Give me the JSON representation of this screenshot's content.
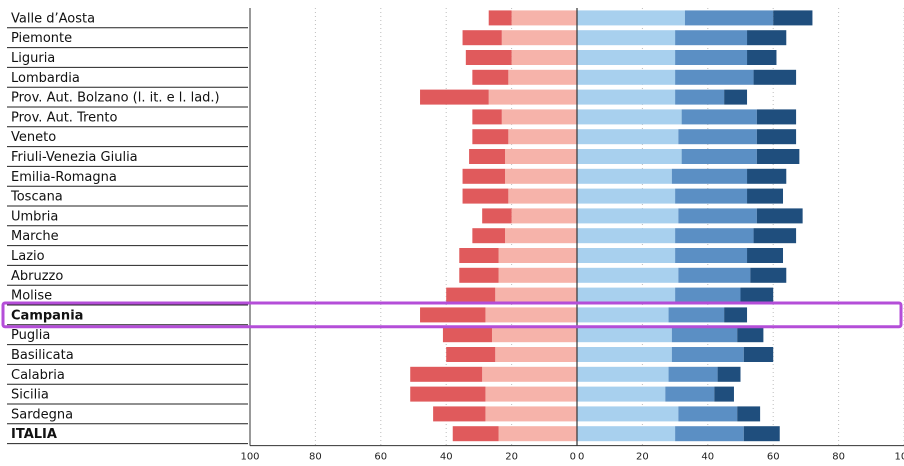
{
  "chart_data": {
    "type": "bar",
    "orientation": "horizontal",
    "stacked": true,
    "diverging": true,
    "categories": [
      "Valle d’Aosta",
      "Piemonte",
      "Liguria",
      "Lombardia",
      "Prov. Aut. Bolzano (l. it. e l. lad.)",
      "Prov. Aut. Trento",
      "Veneto",
      "Friuli-Venezia Giulia",
      "Emilia-Romagna",
      "Toscana",
      "Umbria",
      "Marche",
      "Lazio",
      "Abruzzo",
      "Molise",
      "Campania",
      "Puglia",
      "Basilicata",
      "Calabria",
      "Sicilia",
      "Sardegna",
      "ITALIA"
    ],
    "highlighted_category": "Campania",
    "left_series": [
      {
        "color": "#f6b3aa",
        "values": [
          20,
          23,
          20,
          21,
          27,
          23,
          21,
          22,
          22,
          21,
          20,
          22,
          24,
          24,
          25,
          28,
          26,
          25,
          29,
          28,
          28,
          24
        ]
      },
      {
        "color": "#e05a5c",
        "values": [
          7,
          12,
          14,
          11,
          21,
          9,
          11,
          11,
          13,
          14,
          9,
          10,
          12,
          12,
          15,
          20,
          15,
          15,
          22,
          23,
          16,
          14
        ]
      }
    ],
    "right_series": [
      {
        "color": "#a8d0ee",
        "values": [
          33,
          30,
          30,
          30,
          30,
          32,
          31,
          32,
          29,
          30,
          31,
          30,
          30,
          31,
          30,
          28,
          29,
          29,
          28,
          27,
          31,
          30
        ]
      },
      {
        "color": "#5b8fc4",
        "values": [
          27,
          22,
          22,
          24,
          15,
          23,
          24,
          23,
          23,
          22,
          24,
          24,
          22,
          22,
          20,
          17,
          20,
          22,
          15,
          15,
          18,
          21
        ]
      },
      {
        "color": "#1f4e7d",
        "values": [
          12,
          12,
          9,
          13,
          7,
          12,
          12,
          13,
          12,
          11,
          14,
          13,
          11,
          11,
          10,
          7,
          8,
          9,
          7,
          6,
          7,
          11
        ]
      }
    ],
    "x_ticks_left": [
      "100",
      "80",
      "60",
      "40",
      "20",
      "0"
    ],
    "x_ticks_right": [
      "0",
      "20",
      "40",
      "60",
      "80",
      "100"
    ],
    "xlim_left": [
      100,
      0
    ],
    "xlim_right": [
      0,
      100
    ],
    "grid": true,
    "colors": {
      "highlight_border": "#b44ed8",
      "axis": "#333333",
      "grid": "#bdbdbd",
      "row_line": "#222222"
    }
  }
}
